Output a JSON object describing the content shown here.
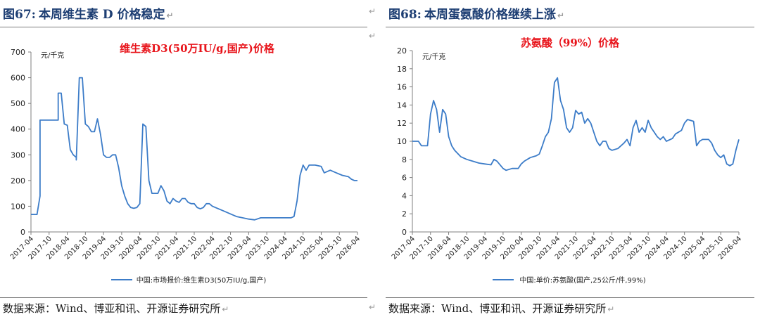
{
  "left": {
    "fig_no": "图67:",
    "fig_title": "本周维生素 D 价格稳定",
    "source": "数据来源：Wind、博亚和讯、开源证券研究所"
  },
  "right": {
    "fig_no": "图68:",
    "fig_title": "本周蛋氨酸价格继续上涨",
    "source": "数据来源：Wind、博亚和讯、开源证券研究所"
  },
  "return_mark": "↵",
  "colors": {
    "title": "#1d3e73",
    "chart_title": "#e8141b",
    "line": "#3c7cc8",
    "axis": "#7f7f7f"
  },
  "chart_data": [
    {
      "type": "line",
      "title": "维生素D3(50万IU/g,国产)价格",
      "ylabel": "元/千克",
      "ylim": [
        0,
        700
      ],
      "yticks": [
        0,
        100,
        200,
        300,
        400,
        500,
        600,
        700
      ],
      "xticks": [
        "2017-04",
        "2017-10",
        "2018-04",
        "2018-10",
        "2019-04",
        "2019-10",
        "2020-04",
        "2020-10",
        "2021-04",
        "2021-10",
        "2022-04",
        "2022-10",
        "2023-04",
        "2023-10",
        "2024-04",
        "2024-10",
        "2025-04",
        "2025-10",
        "2026-04"
      ],
      "xrange": [
        "2017-04",
        "2026-04"
      ],
      "series": [
        {
          "name": "中国:市场报价:维生素D3(50万IU/g,国产)",
          "points": [
            [
              "2017-04",
              68
            ],
            [
              "2017-06",
              68
            ],
            [
              "2017-07",
              140
            ],
            [
              "2017-07",
              435
            ],
            [
              "2017-10",
              435
            ],
            [
              "2017-12",
              435
            ],
            [
              "2018-01",
              435
            ],
            [
              "2018-01",
              540
            ],
            [
              "2018-02",
              540
            ],
            [
              "2018-03",
              420
            ],
            [
              "2018-04",
              415
            ],
            [
              "2018-05",
              320
            ],
            [
              "2018-06",
              300
            ],
            [
              "2018-07",
              290
            ],
            [
              "2018-07",
              280
            ],
            [
              "2018-08",
              600
            ],
            [
              "2018-09",
              600
            ],
            [
              "2018-10",
              420
            ],
            [
              "2018-11",
              410
            ],
            [
              "2018-12",
              390
            ],
            [
              "2019-01",
              390
            ],
            [
              "2019-02",
              440
            ],
            [
              "2019-03",
              380
            ],
            [
              "2019-04",
              300
            ],
            [
              "2019-05",
              290
            ],
            [
              "2019-06",
              290
            ],
            [
              "2019-07",
              300
            ],
            [
              "2019-08",
              300
            ],
            [
              "2019-09",
              250
            ],
            [
              "2019-10",
              180
            ],
            [
              "2019-11",
              140
            ],
            [
              "2019-12",
              110
            ],
            [
              "2020-01",
              95
            ],
            [
              "2020-02",
              92
            ],
            [
              "2020-03",
              95
            ],
            [
              "2020-04",
              110
            ],
            [
              "2020-05",
              420
            ],
            [
              "2020-06",
              410
            ],
            [
              "2020-07",
              200
            ],
            [
              "2020-08",
              150
            ],
            [
              "2020-09",
              150
            ],
            [
              "2020-10",
              150
            ],
            [
              "2020-11",
              180
            ],
            [
              "2020-12",
              160
            ],
            [
              "2021-01",
              120
            ],
            [
              "2021-02",
              110
            ],
            [
              "2021-03",
              130
            ],
            [
              "2021-04",
              120
            ],
            [
              "2021-05",
              115
            ],
            [
              "2021-06",
              130
            ],
            [
              "2021-07",
              130
            ],
            [
              "2021-08",
              115
            ],
            [
              "2021-09",
              110
            ],
            [
              "2021-10",
              110
            ],
            [
              "2021-11",
              95
            ],
            [
              "2021-12",
              90
            ],
            [
              "2022-01",
              95
            ],
            [
              "2022-02",
              110
            ],
            [
              "2022-03",
              110
            ],
            [
              "2022-04",
              100
            ],
            [
              "2022-06",
              90
            ],
            [
              "2022-08",
              80
            ],
            [
              "2022-10",
              70
            ],
            [
              "2022-12",
              60
            ],
            [
              "2023-02",
              55
            ],
            [
              "2023-04",
              50
            ],
            [
              "2023-06",
              47
            ],
            [
              "2023-08",
              55
            ],
            [
              "2023-10",
              55
            ],
            [
              "2023-12",
              55
            ],
            [
              "2024-02",
              55
            ],
            [
              "2024-04",
              55
            ],
            [
              "2024-06",
              55
            ],
            [
              "2024-07",
              60
            ],
            [
              "2024-08",
              120
            ],
            [
              "2024-09",
              220
            ],
            [
              "2024-10",
              260
            ],
            [
              "2024-11",
              240
            ],
            [
              "2024-12",
              260
            ],
            [
              "2025-02",
              260
            ],
            [
              "2025-04",
              255
            ],
            [
              "2025-05",
              230
            ],
            [
              "2025-07",
              240
            ],
            [
              "2025-09",
              230
            ],
            [
              "2025-11",
              220
            ],
            [
              "2026-01",
              215
            ],
            [
              "2026-02",
              205
            ],
            [
              "2026-03",
              200
            ],
            [
              "2026-04",
              200
            ]
          ]
        }
      ]
    },
    {
      "type": "line",
      "title": "苏氨酸（99%）价格",
      "ylabel": "元/千克",
      "ylim": [
        0,
        20
      ],
      "yticks": [
        0,
        2,
        4,
        6,
        8,
        10,
        12,
        14,
        16,
        18,
        20
      ],
      "xticks": [
        "2017-04",
        "2017-10",
        "2018-04",
        "2018-10",
        "2019-04",
        "2019-10",
        "2020-04",
        "2020-10",
        "2021-04",
        "2021-10",
        "2022-04",
        "2022-10",
        "2023-04",
        "2023-10",
        "2024-04",
        "2024-10",
        "2025-04",
        "2025-10",
        "2026-04"
      ],
      "xrange": [
        "2017-04",
        "2026-04"
      ],
      "series": [
        {
          "name": "中国:单价:苏氨酸(国产,25公斤/件,99%)",
          "points": [
            [
              "2017-04",
              10.0
            ],
            [
              "2017-06",
              10.0
            ],
            [
              "2017-07",
              9.5
            ],
            [
              "2017-09",
              9.5
            ],
            [
              "2017-10",
              13.0
            ],
            [
              "2017-11",
              14.5
            ],
            [
              "2017-12",
              13.5
            ],
            [
              "2018-01",
              11.0
            ],
            [
              "2018-02",
              13.5
            ],
            [
              "2018-03",
              13.0
            ],
            [
              "2018-04",
              10.5
            ],
            [
              "2018-05",
              9.5
            ],
            [
              "2018-06",
              9.0
            ],
            [
              "2018-08",
              8.3
            ],
            [
              "2018-10",
              8.0
            ],
            [
              "2018-12",
              7.8
            ],
            [
              "2019-02",
              7.6
            ],
            [
              "2019-04",
              7.5
            ],
            [
              "2019-06",
              7.4
            ],
            [
              "2019-07",
              8.0
            ],
            [
              "2019-08",
              7.8
            ],
            [
              "2019-10",
              7.0
            ],
            [
              "2019-11",
              6.8
            ],
            [
              "2020-01",
              7.0
            ],
            [
              "2020-03",
              7.0
            ],
            [
              "2020-04",
              7.5
            ],
            [
              "2020-05",
              7.8
            ],
            [
              "2020-07",
              8.2
            ],
            [
              "2020-09",
              8.4
            ],
            [
              "2020-10",
              8.6
            ],
            [
              "2020-11",
              9.5
            ],
            [
              "2020-12",
              10.5
            ],
            [
              "2021-01",
              11.0
            ],
            [
              "2021-02",
              12.5
            ],
            [
              "2021-03",
              16.5
            ],
            [
              "2021-04",
              17.0
            ],
            [
              "2021-05",
              14.5
            ],
            [
              "2021-06",
              13.5
            ],
            [
              "2021-07",
              11.5
            ],
            [
              "2021-08",
              11.0
            ],
            [
              "2021-09",
              11.5
            ],
            [
              "2021-10",
              13.4
            ],
            [
              "2021-11",
              13.0
            ],
            [
              "2021-12",
              13.2
            ],
            [
              "2022-01",
              12.0
            ],
            [
              "2022-02",
              12.5
            ],
            [
              "2022-03",
              12.0
            ],
            [
              "2022-04",
              11.0
            ],
            [
              "2022-05",
              10.0
            ],
            [
              "2022-06",
              9.5
            ],
            [
              "2022-07",
              10.0
            ],
            [
              "2022-08",
              10.0
            ],
            [
              "2022-09",
              9.2
            ],
            [
              "2022-10",
              9.0
            ],
            [
              "2022-12",
              9.2
            ],
            [
              "2023-02",
              9.8
            ],
            [
              "2023-03",
              10.2
            ],
            [
              "2023-04",
              9.5
            ],
            [
              "2023-05",
              11.5
            ],
            [
              "2023-06",
              12.3
            ],
            [
              "2023-07",
              11.0
            ],
            [
              "2023-08",
              11.5
            ],
            [
              "2023-09",
              11.0
            ],
            [
              "2023-10",
              12.3
            ],
            [
              "2023-11",
              11.5
            ],
            [
              "2023-12",
              11.0
            ],
            [
              "2024-01",
              10.5
            ],
            [
              "2024-02",
              10.2
            ],
            [
              "2024-03",
              10.5
            ],
            [
              "2024-04",
              10.0
            ],
            [
              "2024-06",
              10.3
            ],
            [
              "2024-07",
              10.8
            ],
            [
              "2024-09",
              11.2
            ],
            [
              "2024-10",
              12.0
            ],
            [
              "2024-11",
              12.4
            ],
            [
              "2025-01",
              12.2
            ],
            [
              "2025-02",
              9.5
            ],
            [
              "2025-03",
              10.0
            ],
            [
              "2025-04",
              10.2
            ],
            [
              "2025-06",
              10.2
            ],
            [
              "2025-07",
              9.8
            ],
            [
              "2025-08",
              9.0
            ],
            [
              "2025-09",
              8.5
            ],
            [
              "2025-10",
              8.2
            ],
            [
              "2025-11",
              8.5
            ],
            [
              "2025-12",
              7.5
            ],
            [
              "2026-01",
              7.3
            ],
            [
              "2026-02",
              7.5
            ],
            [
              "2026-03",
              9.0
            ],
            [
              "2026-04",
              10.2
            ]
          ]
        }
      ]
    }
  ]
}
